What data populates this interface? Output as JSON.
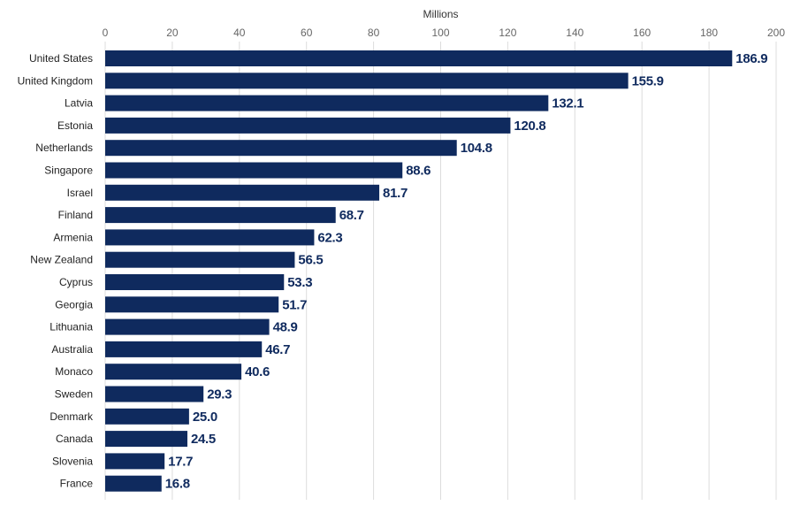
{
  "chart_data": {
    "type": "bar",
    "orientation": "horizontal",
    "title": "",
    "xlabel": "Millions",
    "ylabel": "",
    "xlim": [
      0,
      200
    ],
    "ticks": [
      0,
      20,
      40,
      60,
      80,
      100,
      120,
      140,
      160,
      180,
      200
    ],
    "grid": true,
    "bar_color": "#0f2a5e",
    "value_label_color": "#0f2a5e",
    "categories": [
      "United States",
      "United Kingdom",
      "Latvia",
      "Estonia",
      "Netherlands",
      "Singapore",
      "Israel",
      "Finland",
      "Armenia",
      "New Zealand",
      "Cyprus",
      "Georgia",
      "Lithuania",
      "Australia",
      "Monaco",
      "Sweden",
      "Denmark",
      "Canada",
      "Slovenia",
      "France"
    ],
    "values": [
      186.9,
      155.9,
      132.1,
      120.8,
      104.8,
      88.6,
      81.7,
      68.7,
      62.3,
      56.5,
      53.3,
      51.7,
      48.9,
      46.7,
      40.6,
      29.3,
      25.0,
      24.5,
      17.7,
      16.8
    ]
  }
}
